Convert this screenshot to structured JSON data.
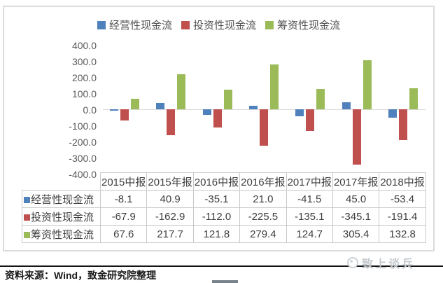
{
  "chart_data": {
    "type": "bar",
    "title": "",
    "categories": [
      "2015中报",
      "2015年报",
      "2016中报",
      "2016年报",
      "2017中报",
      "2017年报",
      "2018中报"
    ],
    "series": [
      {
        "name": "经营性现金流",
        "color": "#4F81BD",
        "values": [
          -8.1,
          40.9,
          -35.1,
          21.0,
          -41.5,
          45.0,
          -53.4
        ]
      },
      {
        "name": "投资性现金流",
        "color": "#C0504D",
        "values": [
          -67.9,
          -162.9,
          -112.0,
          -225.5,
          -135.1,
          -345.1,
          -191.4
        ]
      },
      {
        "name": "筹资性现金流",
        "color": "#9BBB59",
        "values": [
          67.6,
          217.7,
          121.8,
          279.4,
          124.7,
          305.4,
          132.8
        ]
      }
    ],
    "ylim": [
      -400,
      400
    ],
    "yticks": [
      "400.0",
      "300.0",
      "200.0",
      "100.0",
      "0.0",
      "-100.0",
      "-200.0",
      "-300.0",
      "-400.0"
    ],
    "legend_position": "top",
    "grid": false,
    "data_table_shown": true
  },
  "colors": {
    "zero_axis_line": "#d9d9d9",
    "panel_border": "#dcdcdc",
    "table_border": "#c9c9c9",
    "watermark_gray": "#c3c8cc"
  },
  "watermark": {
    "text": "致上谈兵"
  },
  "footer": {
    "source": "资料来源：Wind，致金研究院整理"
  }
}
